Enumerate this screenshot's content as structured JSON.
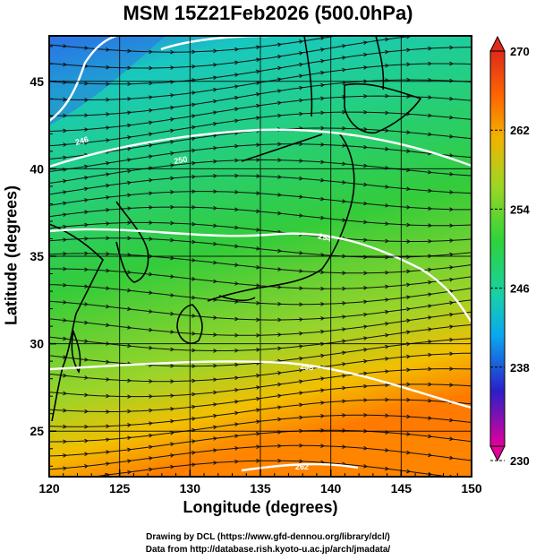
{
  "title": "MSM 15Z21Feb2026 (500.0hPa)",
  "xlabel": "Longitude (degrees)",
  "ylabel": "Latitude  (degrees)",
  "credits": [
    "Drawing by DCL (https://www.gfd-dennou.org/library/dcl/)",
    "Data from http://database.rish.kyoto-u.ac.jp/arch/jmadata/"
  ],
  "map": {
    "lon_range": [
      120,
      150
    ],
    "lat_range": [
      22.4,
      47.6
    ],
    "x_ticks": [
      "120",
      "125",
      "130",
      "135",
      "140",
      "145",
      "150"
    ],
    "y_ticks": [
      "25",
      "30",
      "35",
      "40",
      "45"
    ],
    "colorbar": {
      "min": 230,
      "max": 270,
      "tick_labels": [
        "270",
        "262",
        "254",
        "246",
        "238",
        "230"
      ],
      "colors": [
        "#e4009a",
        "#2b1fc8",
        "#0aa8f0",
        "#18d0a8",
        "#2ed33a",
        "#9ed624",
        "#f0b400",
        "#ff6a00",
        "#e02a1a"
      ]
    },
    "contour_labels": [
      "246",
      "250",
      "254",
      "258",
      "262"
    ],
    "wind": "westerly",
    "temperature_field_colors": {
      "north_west": "#2a78e6",
      "center": "#33cc3c",
      "south": "#ff8a00"
    }
  }
}
